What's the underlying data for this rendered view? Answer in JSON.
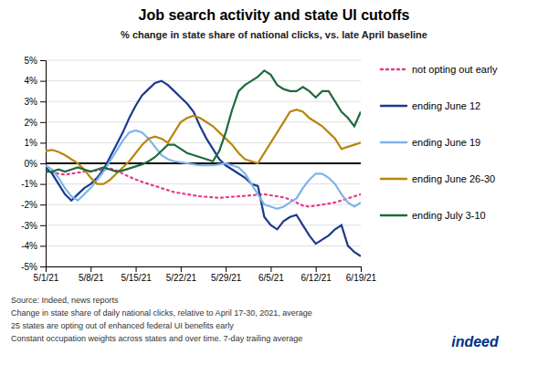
{
  "chart_data": {
    "type": "line",
    "title": "Job search activity and state UI cutoffs",
    "subtitle": "% change in state share of national clicks, vs. late April baseline",
    "categories": [
      "5/1/21",
      null,
      null,
      null,
      null,
      null,
      null,
      "5/8/21",
      null,
      null,
      null,
      null,
      null,
      null,
      "5/15/21",
      null,
      null,
      null,
      null,
      null,
      null,
      "5/22/21",
      null,
      null,
      null,
      null,
      null,
      null,
      "5/29/21",
      null,
      null,
      null,
      null,
      null,
      null,
      "6/5/21",
      null,
      null,
      null,
      null,
      null,
      null,
      "6/12/21",
      null,
      null,
      null,
      null,
      null,
      null,
      "6/19/21"
    ],
    "series": [
      {
        "name": "not opting out early",
        "color": "#E8388A",
        "line_style": "dotted",
        "values": [
          -0.4,
          -0.45,
          -0.5,
          -0.55,
          -0.5,
          -0.45,
          -0.4,
          -0.38,
          -0.35,
          -0.3,
          -0.25,
          -0.35,
          -0.5,
          -0.65,
          -0.78,
          -0.9,
          -1.0,
          -1.1,
          -1.2,
          -1.3,
          -1.4,
          -1.45,
          -1.5,
          -1.55,
          -1.6,
          -1.62,
          -1.65,
          -1.67,
          -1.65,
          -1.62,
          -1.6,
          -1.58,
          -1.55,
          -1.52,
          -1.5,
          -1.55,
          -1.6,
          -1.65,
          -1.75,
          -1.9,
          -2.05,
          -2.1,
          -2.05,
          -2.0,
          -1.95,
          -1.9,
          -1.8,
          -1.7,
          -1.6,
          -1.5
        ]
      },
      {
        "name": "ending June 12",
        "color": "#1B3A8C",
        "line_style": "solid",
        "values": [
          -0.2,
          -0.5,
          -1.0,
          -1.5,
          -1.8,
          -1.5,
          -1.2,
          -1.0,
          -0.7,
          -0.3,
          0.3,
          0.9,
          1.5,
          2.2,
          2.8,
          3.3,
          3.6,
          3.9,
          4.0,
          3.8,
          3.5,
          3.2,
          2.9,
          2.5,
          1.8,
          1.2,
          0.7,
          0.2,
          -0.1,
          -0.3,
          -0.5,
          -0.7,
          -1.0,
          -1.1,
          -2.6,
          -3.0,
          -3.2,
          -2.8,
          -2.6,
          -2.5,
          -3.0,
          -3.5,
          -3.9,
          -3.7,
          -3.5,
          -3.2,
          -3.0,
          -4.0,
          -4.3,
          -4.5
        ]
      },
      {
        "name": "ending June 19",
        "color": "#7EB4EA",
        "line_style": "solid",
        "values": [
          -0.1,
          -0.3,
          -0.7,
          -1.2,
          -1.6,
          -1.8,
          -1.5,
          -1.2,
          -0.8,
          -0.4,
          0.1,
          0.6,
          1.1,
          1.5,
          1.6,
          1.5,
          1.2,
          0.8,
          0.4,
          0.2,
          0.1,
          0.05,
          0.0,
          -0.05,
          -0.1,
          -0.1,
          -0.1,
          -0.05,
          0.0,
          -0.1,
          -0.2,
          -0.5,
          -1.0,
          -1.5,
          -2.0,
          -2.1,
          -2.2,
          -2.1,
          -1.9,
          -1.7,
          -1.2,
          -0.8,
          -0.5,
          -0.5,
          -0.7,
          -1.0,
          -1.5,
          -1.9,
          -2.1,
          -1.9
        ]
      },
      {
        "name": "ending June 26-30",
        "color": "#B8860B",
        "line_style": "solid",
        "values": [
          0.6,
          0.65,
          0.55,
          0.4,
          0.2,
          0.0,
          -0.3,
          -0.7,
          -1.0,
          -1.0,
          -0.8,
          -0.5,
          -0.2,
          0.1,
          0.5,
          0.9,
          1.2,
          1.3,
          1.2,
          1.0,
          1.5,
          2.0,
          2.2,
          2.3,
          2.2,
          2.0,
          1.8,
          1.5,
          1.2,
          0.9,
          0.5,
          0.2,
          0.1,
          0.0,
          0.5,
          1.0,
          1.5,
          2.0,
          2.5,
          2.6,
          2.5,
          2.2,
          2.0,
          1.8,
          1.5,
          1.2,
          0.7,
          0.8,
          0.9,
          1.0
        ]
      },
      {
        "name": "ending July 3-10",
        "color": "#1E6B3C",
        "line_style": "solid",
        "values": [
          -0.4,
          -0.4,
          -0.3,
          -0.4,
          -0.3,
          -0.2,
          -0.3,
          -0.4,
          -0.3,
          -0.2,
          -0.3,
          -0.4,
          -0.35,
          -0.25,
          -0.15,
          -0.05,
          0.1,
          0.3,
          0.6,
          0.9,
          0.9,
          0.7,
          0.5,
          0.4,
          0.3,
          0.2,
          0.1,
          0.6,
          1.5,
          2.6,
          3.5,
          3.8,
          4.0,
          4.2,
          4.5,
          4.3,
          3.8,
          3.6,
          3.5,
          3.5,
          3.7,
          3.5,
          3.2,
          3.5,
          3.5,
          3.0,
          2.5,
          2.2,
          1.8,
          2.5
        ]
      }
    ],
    "ylim": [
      -5,
      5
    ],
    "yticks": [
      {
        "value": -5,
        "label": "-5%"
      },
      {
        "value": -4,
        "label": "-4%"
      },
      {
        "value": -3,
        "label": "-3%"
      },
      {
        "value": -2,
        "label": "-2%"
      },
      {
        "value": -1,
        "label": "-1%"
      },
      {
        "value": 0,
        "label": "0%"
      },
      {
        "value": 1,
        "label": "1%"
      },
      {
        "value": 2,
        "label": "2%"
      },
      {
        "value": 3,
        "label": "3%"
      },
      {
        "value": 4,
        "label": "4%"
      },
      {
        "value": 5,
        "label": "5%"
      }
    ],
    "grid": true,
    "legend": "right",
    "annotations": [
      "Source: Indeed, news reports",
      "Change in state share of daily national clicks, relative to April 17-30, 2021, average",
      "25 states are opting out of enhanced federal UI benefits early",
      "Constant occupation weights across states and over time. 7-day trailing average",
      "indeed"
    ]
  }
}
